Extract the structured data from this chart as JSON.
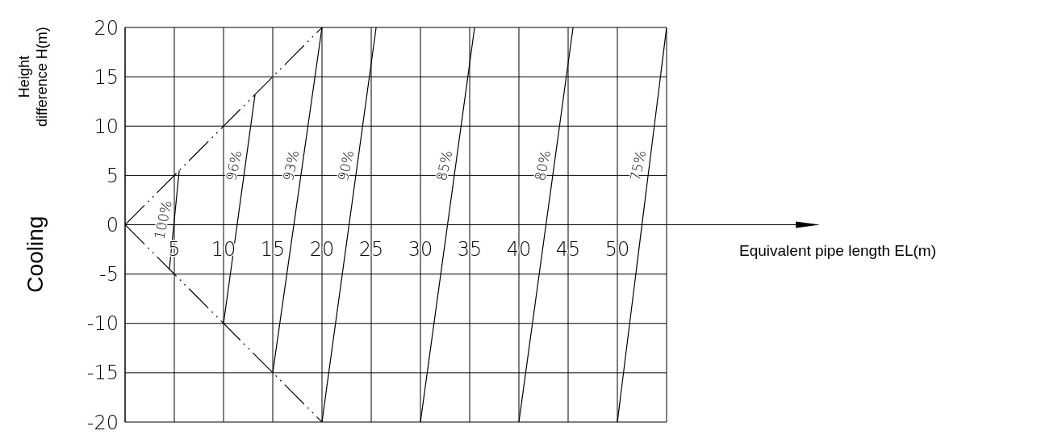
{
  "chart_data": {
    "type": "line",
    "xlabel": "Equivalent pipe length EL(m)",
    "ylabel": "Height difference H(m)",
    "annotations": [
      "Cooling"
    ],
    "xlim": [
      0,
      55
    ],
    "ylim": [
      -20,
      20
    ],
    "xticks": [
      {
        "value": 0,
        "label": null
      },
      5,
      10,
      15,
      20,
      25,
      30,
      35,
      40,
      45,
      50,
      {
        "value": 55,
        "label": null
      }
    ],
    "yticks": [
      -20,
      -15,
      -10,
      -5,
      0,
      5,
      10,
      15,
      20
    ],
    "grid": true,
    "line_style": "solid",
    "series": [
      {
        "name": "100%",
        "color": "#000000",
        "x": [
          4.5,
          5.5
        ],
        "values": [
          -4.5,
          5.5
        ]
      },
      {
        "name": "96%",
        "color": "#000000",
        "x": [
          10,
          13.2
        ],
        "values": [
          -10,
          13.2
        ]
      },
      {
        "name": "93%",
        "color": "#000000",
        "x": [
          15,
          20
        ],
        "values": [
          -15,
          20
        ]
      },
      {
        "name": "90%",
        "color": "#000000",
        "x": [
          20,
          25.5
        ],
        "values": [
          -20,
          20
        ]
      },
      {
        "name": "85%",
        "color": "#000000",
        "x": [
          30,
          35.5
        ],
        "values": [
          -20,
          20
        ]
      },
      {
        "name": "80%",
        "color": "#000000",
        "x": [
          40,
          45.5
        ],
        "values": [
          -20,
          20
        ]
      },
      {
        "name": "75%",
        "color": "#000000",
        "x": [
          50,
          55
        ],
        "values": [
          -20,
          20
        ]
      },
      {
        "color": "#000000",
        "x": [
          0,
          20
        ],
        "values": [
          0,
          20
        ],
        "line_style": "dashed"
      },
      {
        "color": "#000000",
        "x": [
          0,
          20
        ],
        "values": [
          0,
          -20
        ],
        "line_style": "dashed"
      }
    ]
  }
}
